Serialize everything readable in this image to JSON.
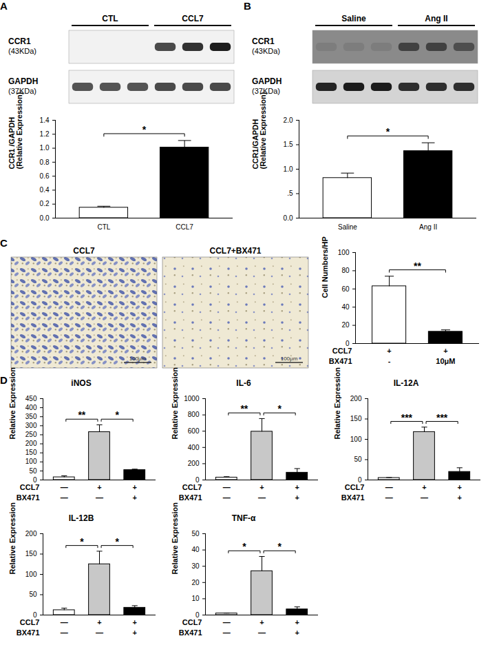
{
  "panels": [
    "A",
    "B",
    "C",
    "D"
  ],
  "blots": [
    {
      "panel": "A",
      "groups": [
        {
          "label": "CTL",
          "lanes": 3
        },
        {
          "label": "CCL7",
          "lanes": 3
        }
      ],
      "rows": [
        {
          "name": "CCR1",
          "size": "(43KDa)",
          "background": "#f2f2f2",
          "bands": [
            0,
            0,
            0,
            0.75,
            0.85,
            0.95
          ]
        },
        {
          "name": "GAPDH",
          "size": "(37KDa)",
          "background": "#f2f2f2",
          "bands": [
            0.7,
            0.7,
            0.7,
            0.75,
            0.75,
            0.75
          ]
        }
      ]
    },
    {
      "panel": "B",
      "groups": [
        {
          "label": "Saline",
          "lanes": 3
        },
        {
          "label": "Ang II",
          "lanes": 3
        }
      ],
      "rows": [
        {
          "name": "CCR1",
          "size": "(43KDa)",
          "background": "#8a8a8a",
          "bands": [
            0.1,
            0.1,
            0.1,
            0.6,
            0.6,
            0.5
          ]
        },
        {
          "name": "GAPDH",
          "size": "(37KDa)",
          "background": "#d4d4d4",
          "bands": [
            0.9,
            0.95,
            0.95,
            0.85,
            0.85,
            0.85
          ]
        }
      ]
    }
  ],
  "micrographs": {
    "panel": "C",
    "images": [
      "CCL7",
      "CCL7+BX471"
    ],
    "scale_bar": "100μm"
  },
  "chart_data": [
    {
      "panel": "A",
      "type": "bar",
      "categories": [
        "CTL",
        "CCL7"
      ],
      "values": [
        0.15,
        1.01
      ],
      "errors": [
        0.02,
        0.1
      ],
      "colors": [
        "#ffffff",
        "#000000"
      ],
      "ylabel": [
        "CCR1 /GAPDH",
        "(Relative Expression)"
      ],
      "ylim": [
        0,
        1.4
      ],
      "yticks": [
        {
          "value": 0,
          "label": "0.0"
        },
        0.2,
        0.4,
        0.6,
        0.8,
        {
          "value": 1,
          "label": "1.0"
        },
        1.2,
        1.4
      ],
      "grid": false,
      "significance": [
        {
          "from": 0,
          "to": 1,
          "label": "*"
        }
      ]
    },
    {
      "panel": "B",
      "type": "bar",
      "categories": [
        "Saline",
        "Ang II"
      ],
      "values": [
        0.82,
        1.37
      ],
      "errors": [
        0.1,
        0.17
      ],
      "colors": [
        "#ffffff",
        "#000000"
      ],
      "ylabel": [
        "CCR1/GAPDH",
        "(Relative Expression)"
      ],
      "ylim": [
        0,
        2
      ],
      "yticks": [
        {
          "value": 0,
          "label": "0.0"
        },
        {
          "value": 0.5,
          "label": ".5"
        },
        {
          "value": 1,
          "label": "1.0"
        },
        1.5,
        {
          "value": 2,
          "label": "2.0"
        }
      ],
      "grid": false,
      "significance": [
        {
          "from": 0,
          "to": 1,
          "label": "*"
        }
      ]
    },
    {
      "panel": "C",
      "type": "bar",
      "categories": [
        null,
        null
      ],
      "values": [
        63,
        13
      ],
      "errors": [
        11,
        2
      ],
      "colors": [
        "#ffffff",
        "#000000"
      ],
      "ylabel": [
        "Cell Numbers/HP"
      ],
      "conditions": [
        {
          "name": "CCL7",
          "labels": [
            "+",
            "+"
          ]
        },
        {
          "name": "BX471",
          "labels": [
            "-",
            "10μM"
          ]
        }
      ],
      "ylim": [
        0,
        100
      ],
      "yticks": [
        0,
        20,
        40,
        60,
        80,
        100
      ],
      "grid": false,
      "tick_labels": "y",
      "significance": [
        {
          "from": 0,
          "to": 1,
          "label": "**"
        }
      ]
    },
    {
      "panel": "D",
      "type": "bar",
      "title": "iNOS",
      "categories": [
        null,
        null,
        null
      ],
      "values": [
        15,
        265,
        55
      ],
      "errors": [
        8,
        40,
        5
      ],
      "colors": [
        "#ffffff",
        "#c8c8c8",
        "#000000"
      ],
      "ylabel": [
        "Relative Expression"
      ],
      "conditions": [
        {
          "name": "CCL7",
          "labels": [
            "—",
            "+",
            "+"
          ]
        },
        {
          "name": "BX471",
          "labels": [
            "—",
            "—",
            "+"
          ]
        }
      ],
      "ylim": [
        0,
        450
      ],
      "yticks": [
        0,
        50,
        100,
        150,
        200,
        250,
        300,
        350,
        400,
        450
      ],
      "grid": false,
      "tick_labels": "y",
      "significance": [
        {
          "from": 0,
          "to": 1,
          "label": "**"
        },
        {
          "from": 1,
          "to": 2,
          "label": "*"
        }
      ]
    },
    {
      "panel": "D",
      "type": "bar",
      "title": "IL-6",
      "categories": [
        null,
        null,
        null
      ],
      "values": [
        30,
        595,
        90
      ],
      "errors": [
        10,
        160,
        50
      ],
      "colors": [
        "#ffffff",
        "#c8c8c8",
        "#000000"
      ],
      "ylabel": [
        "Relative Expression"
      ],
      "conditions": [
        {
          "name": "CCL7",
          "labels": [
            "—",
            "+",
            "+"
          ]
        },
        {
          "name": "BX471",
          "labels": [
            "—",
            "—",
            "+"
          ]
        }
      ],
      "ylim": [
        0,
        1000
      ],
      "yticks": [
        0,
        200,
        400,
        600,
        800,
        1000
      ],
      "grid": false,
      "tick_labels": "y",
      "significance": [
        {
          "from": 0,
          "to": 1,
          "label": "**"
        },
        {
          "from": 1,
          "to": 2,
          "label": "*"
        }
      ]
    },
    {
      "panel": "D",
      "type": "bar",
      "title": "IL-12A",
      "categories": [
        null,
        null,
        null
      ],
      "values": [
        5,
        118,
        20
      ],
      "errors": [
        1,
        12,
        10
      ],
      "colors": [
        "#ffffff",
        "#c8c8c8",
        "#000000"
      ],
      "ylabel": [
        "Relative Expression"
      ],
      "conditions": [
        {
          "name": "CCL7",
          "labels": [
            "—",
            "+",
            "+"
          ]
        },
        {
          "name": "BX471",
          "labels": [
            "—",
            "—",
            "+"
          ]
        }
      ],
      "ylim": [
        0,
        200
      ],
      "yticks": [
        0,
        50,
        100,
        150,
        200
      ],
      "grid": false,
      "tick_labels": "y",
      "significance": [
        {
          "from": 0,
          "to": 1,
          "label": "***"
        },
        {
          "from": 1,
          "to": 2,
          "label": "***"
        }
      ]
    },
    {
      "panel": "D",
      "type": "bar",
      "title": "IL-12B",
      "categories": [
        null,
        null,
        null
      ],
      "values": [
        12,
        125,
        18
      ],
      "errors": [
        5,
        32,
        5
      ],
      "colors": [
        "#ffffff",
        "#c8c8c8",
        "#000000"
      ],
      "ylabel": [
        "Relative Expression"
      ],
      "conditions": [
        {
          "name": "CCL7",
          "labels": [
            "—",
            "+",
            "+"
          ]
        },
        {
          "name": "BX471",
          "labels": [
            "—",
            "—",
            "+"
          ]
        }
      ],
      "ylim": [
        0,
        200
      ],
      "yticks": [
        0,
        50,
        100,
        150,
        200
      ],
      "grid": false,
      "tick_labels": "y",
      "significance": [
        {
          "from": 0,
          "to": 1,
          "label": "*"
        },
        {
          "from": 1,
          "to": 2,
          "label": "*"
        }
      ]
    },
    {
      "panel": "D",
      "type": "bar",
      "title": "TNF-α",
      "categories": [
        null,
        null,
        null
      ],
      "values": [
        1,
        27,
        3.5
      ],
      "errors": [
        0.2,
        9,
        1.5
      ],
      "colors": [
        "#ffffff",
        "#c8c8c8",
        "#000000"
      ],
      "ylabel": [
        "Relative Expression"
      ],
      "conditions": [
        {
          "name": "CCL7",
          "labels": [
            "—",
            "+",
            "+"
          ]
        },
        {
          "name": "BX471",
          "labels": [
            "—",
            "—",
            "+"
          ]
        }
      ],
      "ylim": [
        0,
        50
      ],
      "yticks": [
        0,
        10,
        20,
        30,
        40,
        50
      ],
      "grid": false,
      "tick_labels": "y",
      "significance": [
        {
          "from": 0,
          "to": 1,
          "label": "*"
        },
        {
          "from": 1,
          "to": 2,
          "label": "*"
        }
      ]
    }
  ]
}
